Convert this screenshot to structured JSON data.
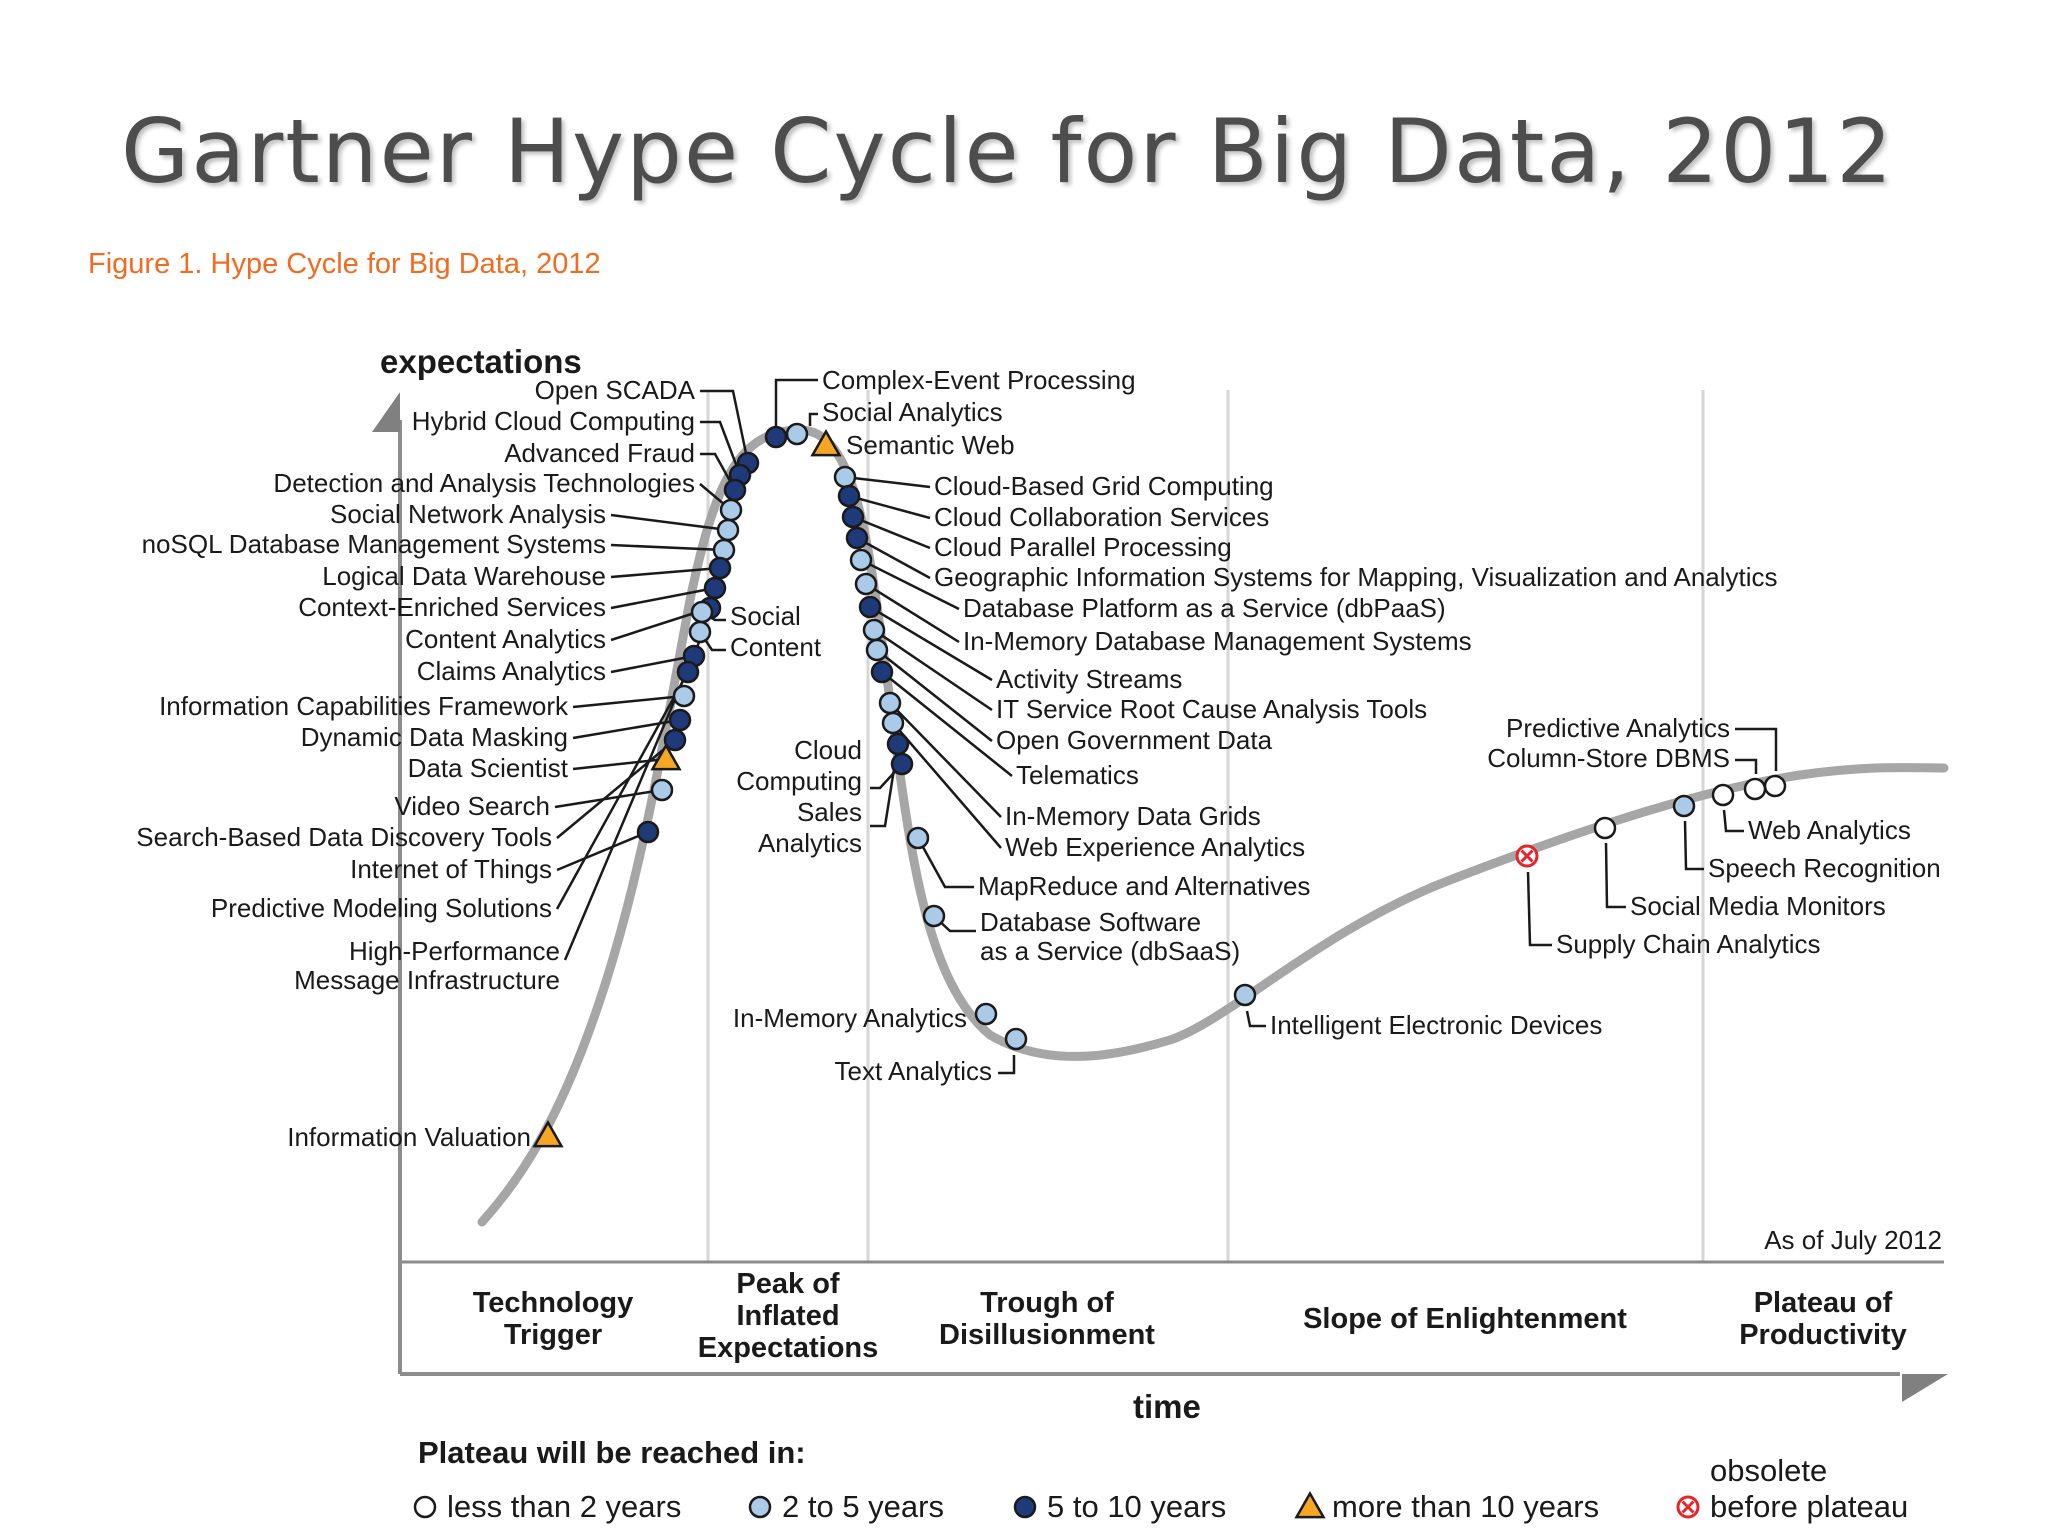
{
  "title": "Gartner Hype Cycle for Big Data, 2012",
  "caption": "Figure 1. Hype Cycle for Big Data, 2012",
  "axes": {
    "y_label": "expectations",
    "x_label": "time"
  },
  "as_of": "As of July 2012",
  "phases": [
    {
      "name": "technology-trigger",
      "lines": [
        "Technology",
        "Trigger"
      ]
    },
    {
      "name": "peak-of-inflated-expectations",
      "lines": [
        "Peak of",
        "Inflated",
        "Expectations"
      ]
    },
    {
      "name": "trough-of-disillusionment",
      "lines": [
        "Trough of",
        "Disillusionment"
      ]
    },
    {
      "name": "slope-of-enlightenment",
      "lines": [
        "Slope of Enlightenment"
      ]
    },
    {
      "name": "plateau-of-productivity",
      "lines": [
        "Plateau of",
        "Productivity"
      ]
    }
  ],
  "legend": {
    "title": "Plateau will be reached in:",
    "items": [
      {
        "marker": "white-circle",
        "label": "less than 2 years"
      },
      {
        "marker": "light-blue-circle",
        "label": "2 to 5 years"
      },
      {
        "marker": "dark-blue-circle",
        "label": "5 to 10 years"
      },
      {
        "marker": "orange-triangle",
        "label": "more than 10 years"
      },
      {
        "marker": "red-x-circle",
        "label_top": "obsolete",
        "label": "before plateau"
      }
    ]
  },
  "colors": {
    "curve": "#a6a6a6",
    "less_than_2_years": "#ffffff",
    "2_to_5_years": "#a9cbe8",
    "5_to_10_years": "#1f3a7a",
    "more_than_10_years": "#f5a623",
    "obsolete": "#e3262b",
    "caption": "#f26b21"
  },
  "technologies": {
    "trigger_and_rising": [
      {
        "label": "Open SCADA",
        "category": "5_to_10_years"
      },
      {
        "label": "Hybrid Cloud Computing",
        "category": "5_to_10_years"
      },
      {
        "label": "Advanced Fraud",
        "category": "5_to_10_years"
      },
      {
        "label": "Detection and Analysis Technologies",
        "category": "2_to_5_years"
      },
      {
        "label": "Social Network Analysis",
        "category": "2_to_5_years"
      },
      {
        "label": "noSQL Database Management Systems",
        "category": "2_to_5_years"
      },
      {
        "label": "Logical Data Warehouse",
        "category": "5_to_10_years"
      },
      {
        "label": "Context-Enriched Services",
        "category": "5_to_10_years"
      },
      {
        "label": "Content Analytics",
        "category": "5_to_10_years"
      },
      {
        "label": "Claims Analytics",
        "category": "5_to_10_years"
      },
      {
        "label": "Information Capabilities Framework",
        "category": "2_to_5_years"
      },
      {
        "label": "Dynamic Data Masking",
        "category": "5_to_10_years"
      },
      {
        "label": "Data Scientist",
        "category": "more_than_10_years"
      },
      {
        "label": "Video Search",
        "category": "2_to_5_years"
      },
      {
        "label": "Search-Based Data Discovery Tools",
        "category": "5_to_10_years"
      },
      {
        "label": "Internet of Things",
        "category": "5_to_10_years"
      },
      {
        "label": "Predictive Modeling Solutions",
        "category": "5_to_10_years"
      },
      {
        "label": "High-Performance",
        "category": "5_to_10_years"
      },
      {
        "label": "Message Infrastructure",
        "category": "5_to_10_years"
      },
      {
        "label": "Information Valuation",
        "category": "more_than_10_years"
      },
      {
        "label": "Social",
        "category": "2_to_5_years"
      },
      {
        "label": "Content",
        "category": "2_to_5_years"
      }
    ],
    "peak_and_falling": [
      {
        "label": "Complex-Event Processing",
        "category": "5_to_10_years"
      },
      {
        "label": "Social Analytics",
        "category": "2_to_5_years"
      },
      {
        "label": "Semantic Web",
        "category": "more_than_10_years"
      },
      {
        "label": "Cloud-Based Grid Computing",
        "category": "2_to_5_years"
      },
      {
        "label": "Cloud Collaboration Services",
        "category": "5_to_10_years"
      },
      {
        "label": "Cloud Parallel Processing",
        "category": "5_to_10_years"
      },
      {
        "label": "Geographic Information Systems for Mapping, Visualization and Analytics",
        "category": "5_to_10_years"
      },
      {
        "label": "Database Platform as a Service (dbPaaS)",
        "category": "2_to_5_years"
      },
      {
        "label": "In-Memory Database Management Systems",
        "category": "2_to_5_years"
      },
      {
        "label": "Activity Streams",
        "category": "5_to_10_years"
      },
      {
        "label": "IT Service Root Cause Analysis Tools",
        "category": "2_to_5_years"
      },
      {
        "label": "Open Government Data",
        "category": "2_to_5_years"
      },
      {
        "label": "Telematics",
        "category": "5_to_10_years"
      },
      {
        "label": "In-Memory Data Grids",
        "category": "2_to_5_years"
      },
      {
        "label": "Web Experience Analytics",
        "category": "2_to_5_years"
      },
      {
        "label": "MapReduce and Alternatives",
        "category": "2_to_5_years"
      },
      {
        "label": "Database Software",
        "category": "2_to_5_years"
      },
      {
        "label": "as a Service (dbSaaS)",
        "category": "2_to_5_years"
      },
      {
        "label": "Cloud",
        "category": "5_to_10_years"
      },
      {
        "label": "Computing",
        "category": "5_to_10_years"
      },
      {
        "label": "Sales",
        "category": "5_to_10_years"
      },
      {
        "label": "Analytics",
        "category": "5_to_10_years"
      },
      {
        "label": "In-Memory Analytics",
        "category": "2_to_5_years"
      },
      {
        "label": "Text Analytics",
        "category": "2_to_5_years"
      }
    ],
    "slope_and_plateau": [
      {
        "label": "Intelligent Electronic Devices",
        "category": "2_to_5_years"
      },
      {
        "label": "Supply Chain Analytics",
        "category": "obsolete"
      },
      {
        "label": "Social Media Monitors",
        "category": "less_than_2_years"
      },
      {
        "label": "Speech Recognition",
        "category": "2_to_5_years"
      },
      {
        "label": "Web Analytics",
        "category": "less_than_2_years"
      },
      {
        "label": "Predictive Analytics",
        "category": "less_than_2_years"
      },
      {
        "label": "Column-Store DBMS",
        "category": "less_than_2_years"
      }
    ]
  }
}
